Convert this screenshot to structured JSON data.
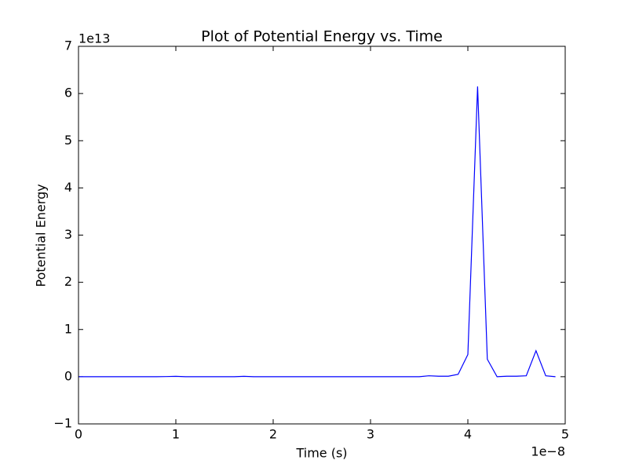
{
  "chart_data": {
    "type": "line",
    "title": "Plot of Potential Energy vs. Time",
    "x_label": "Time (s)",
    "y_label": "Potential Energy",
    "x_offset_label": "1e−8",
    "y_offset_label": "1e13",
    "x": [
      0,
      0.1,
      0.2,
      0.3,
      0.4,
      0.5,
      0.6,
      0.7,
      0.8,
      0.9,
      1.0,
      1.1,
      1.2,
      1.3,
      1.4,
      1.5,
      1.6,
      1.7,
      1.8,
      1.9,
      2.0,
      2.1,
      2.2,
      2.3,
      2.4,
      2.5,
      2.6,
      2.7,
      2.8,
      2.9,
      3.0,
      3.1,
      3.2,
      3.3,
      3.4,
      3.5,
      3.6,
      3.7,
      3.8,
      3.9,
      4.0,
      4.1,
      4.2,
      4.3,
      4.4,
      4.5,
      4.6,
      4.7,
      4.8,
      4.9
    ],
    "series": [
      {
        "name": "Potential Energy",
        "color": "#0000ff",
        "values": [
          0,
          0,
          0,
          0,
          0,
          0,
          0,
          0,
          0,
          0.003,
          0.008,
          0,
          0,
          0,
          0,
          0,
          0,
          0.008,
          0,
          0,
          0,
          0,
          0,
          0,
          0,
          0,
          0,
          0,
          0,
          0,
          0,
          0,
          0,
          0,
          0,
          0,
          0.02,
          0.01,
          0.01,
          0.05,
          0.47,
          6.15,
          0.37,
          0,
          0.01,
          0.01,
          0.02,
          0.55,
          0.02,
          0
        ]
      }
    ],
    "xlim": [
      0,
      5
    ],
    "xticks": [
      0,
      1,
      2,
      3,
      4,
      5
    ],
    "ylim": [
      -1,
      7
    ],
    "yticks": [
      {
        "value": -1,
        "label": "−1"
      },
      0,
      1,
      2,
      3,
      4,
      5,
      6,
      7
    ],
    "grid": false
  }
}
